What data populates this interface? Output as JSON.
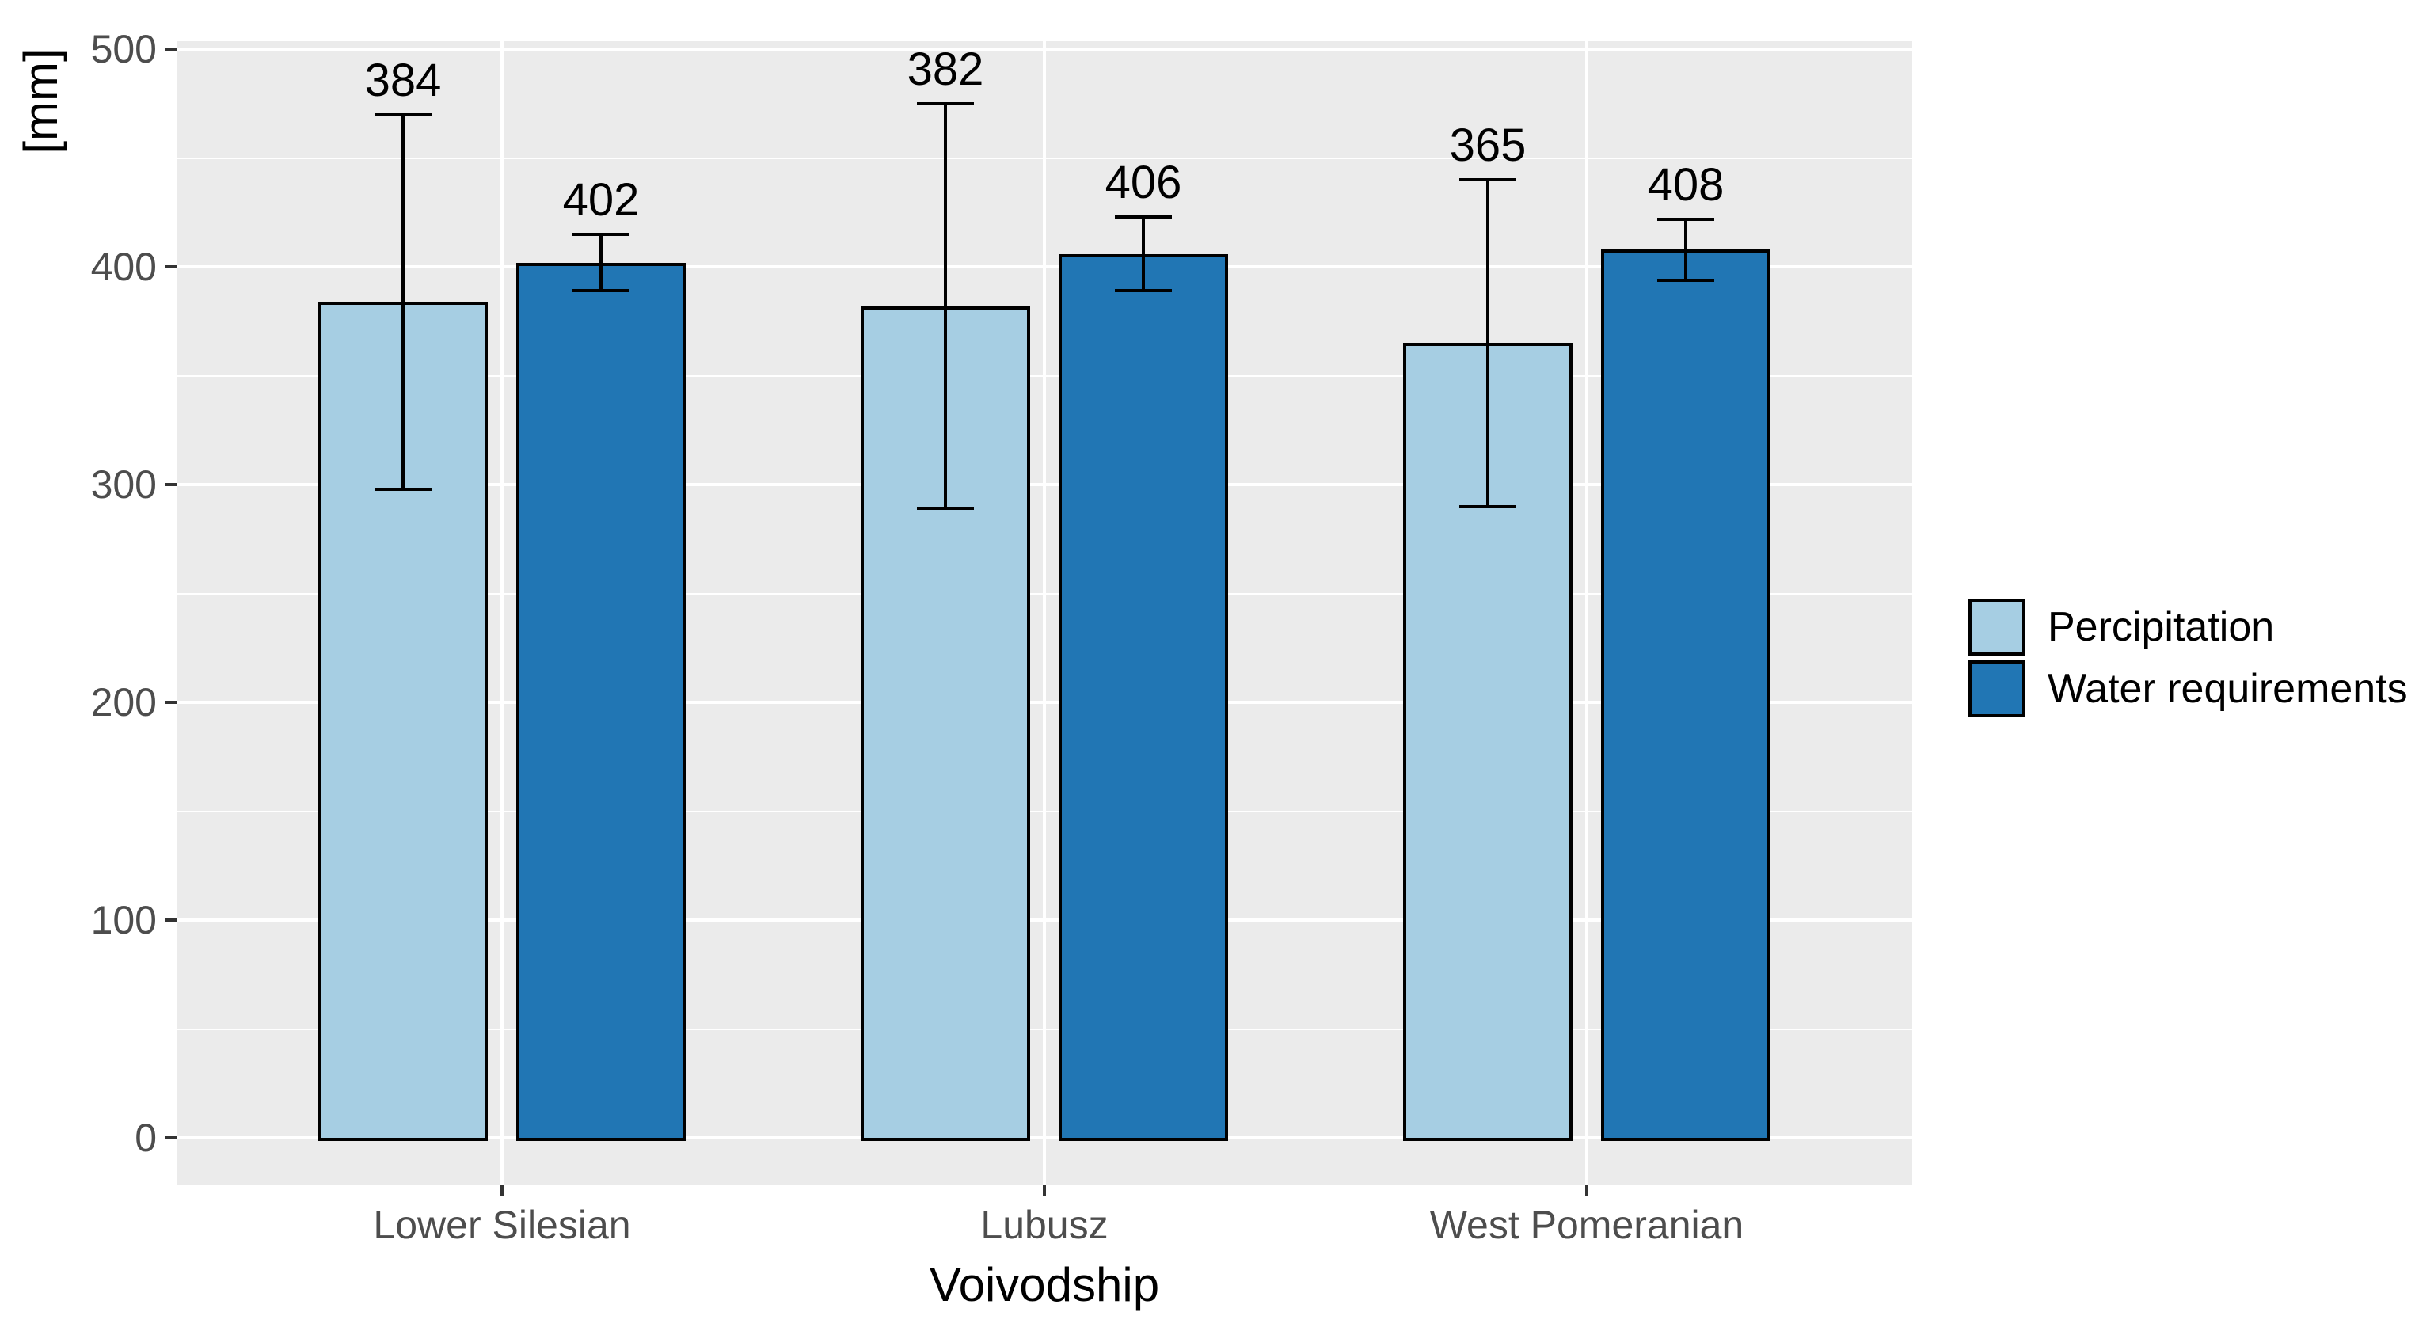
{
  "chart_data": {
    "type": "bar",
    "title": "",
    "categories": [
      "Lower Silesian",
      "Lubusz",
      "West Pomeranian"
    ],
    "series": [
      {
        "name": "Percipitation",
        "color": "#A6CEE3",
        "values": [
          384,
          382,
          365
        ],
        "error_low": [
          298,
          289,
          290
        ],
        "error_high": [
          470,
          475,
          440
        ]
      },
      {
        "name": "Water requirements",
        "color": "#2176B4",
        "values": [
          402,
          406,
          408
        ],
        "error_low": [
          389,
          389,
          394
        ],
        "error_high": [
          415,
          423,
          422
        ]
      }
    ],
    "xlabel": "Voivodship",
    "ylabel": "[mm]",
    "ylim": [
      0,
      500
    ],
    "yticks": [
      0,
      100,
      200,
      300,
      400,
      500
    ],
    "yticks_minor": [
      50,
      150,
      250,
      350,
      450
    ],
    "bar_value_labels": true,
    "legend_position": "right",
    "grid": "white major and minor gridlines on gray panel",
    "panel_background": "#EBEBEB",
    "gridline_color": "#FFFFFF"
  },
  "styles": {
    "bar_border_color": "#000000",
    "error_bar_color": "#000000",
    "tick_mark_color": "#333333",
    "tick_label_color": "#4D4D4D",
    "title_color": "#000000"
  }
}
